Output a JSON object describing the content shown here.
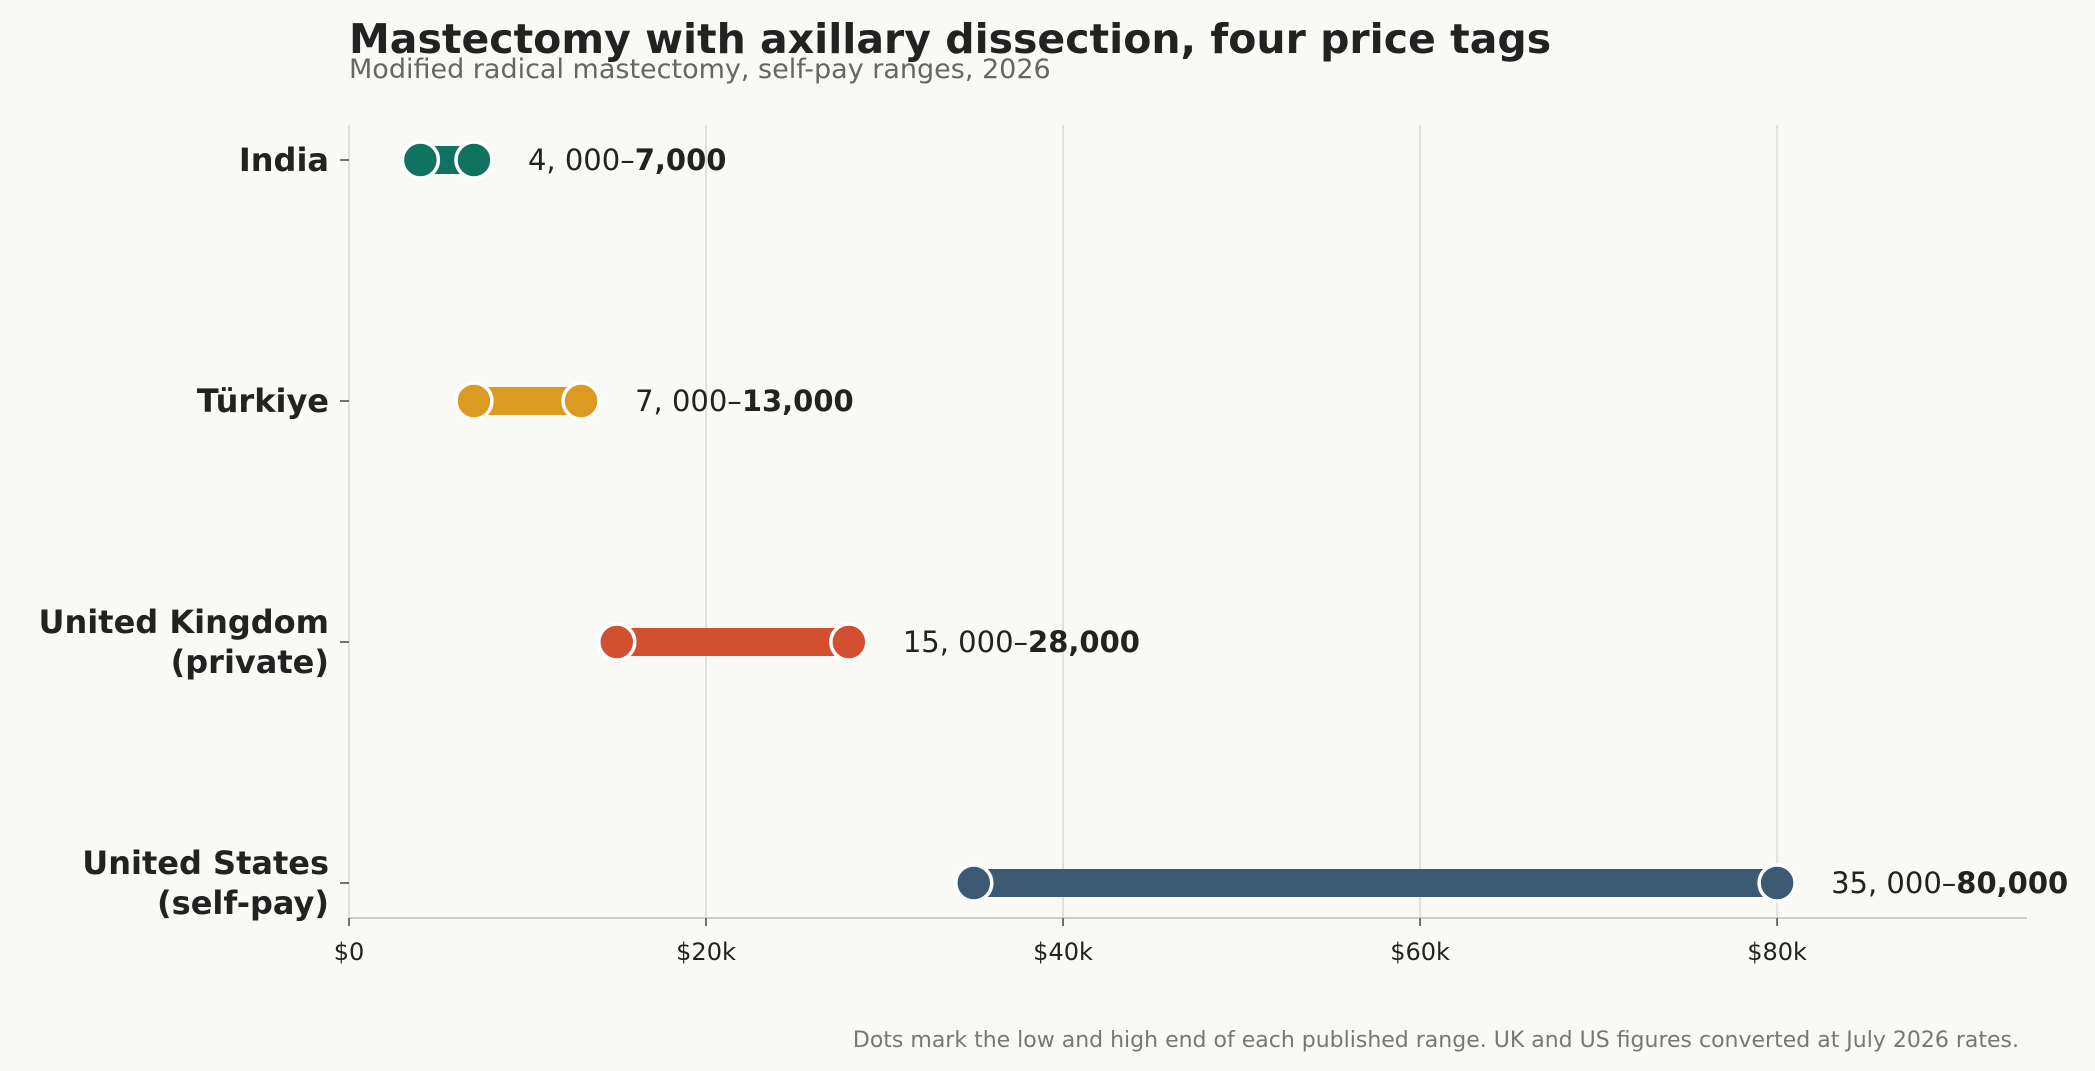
{
  "title": "Mastectomy with axillary dissection, four price tags",
  "subtitle": "Modified radical mastectomy, self-pay ranges, 2026",
  "footnote": "Dots mark the low and high end of each published range. UK and US figures converted at July 2026 rates.",
  "chart_data": {
    "type": "dumbbell",
    "title": "Mastectomy with axillary dissection, four price tags",
    "subtitle": "Modified radical mastectomy, self-pay ranges, 2026",
    "xlim": [
      0,
      94000
    ],
    "grid": "vertical",
    "x_ticks": [
      {
        "value": 0,
        "label": "$0"
      },
      {
        "value": 20000,
        "label": "$20k"
      },
      {
        "value": 40000,
        "label": "$40k"
      },
      {
        "value": 60000,
        "label": "$60k"
      },
      {
        "value": 80000,
        "label": "$80k"
      }
    ],
    "categories": [
      {
        "label": [
          "India"
        ],
        "low": 4000,
        "high": 7000,
        "low_text": "4, 000–",
        "high_text": "7,000",
        "color": "#10735f"
      },
      {
        "label": [
          "Türkiye"
        ],
        "low": 7000,
        "high": 13000,
        "low_text": "7, 000–",
        "high_text": "13,000",
        "color": "#db9a22"
      },
      {
        "label": [
          "United Kingdom",
          "(private)"
        ],
        "low": 15000,
        "high": 28000,
        "low_text": "15, 000–",
        "high_text": "28,000",
        "color": "#d25030"
      },
      {
        "label": [
          "United States",
          "(self-pay)"
        ],
        "low": 35000,
        "high": 80000,
        "low_text": "35, 000–",
        "high_text": "80,000",
        "color": "#3c5a73"
      }
    ]
  },
  "colors": {
    "background": "#f9f9f5",
    "grid": "#e0e0dc",
    "axis": "#cccccc",
    "text": "#222222"
  }
}
